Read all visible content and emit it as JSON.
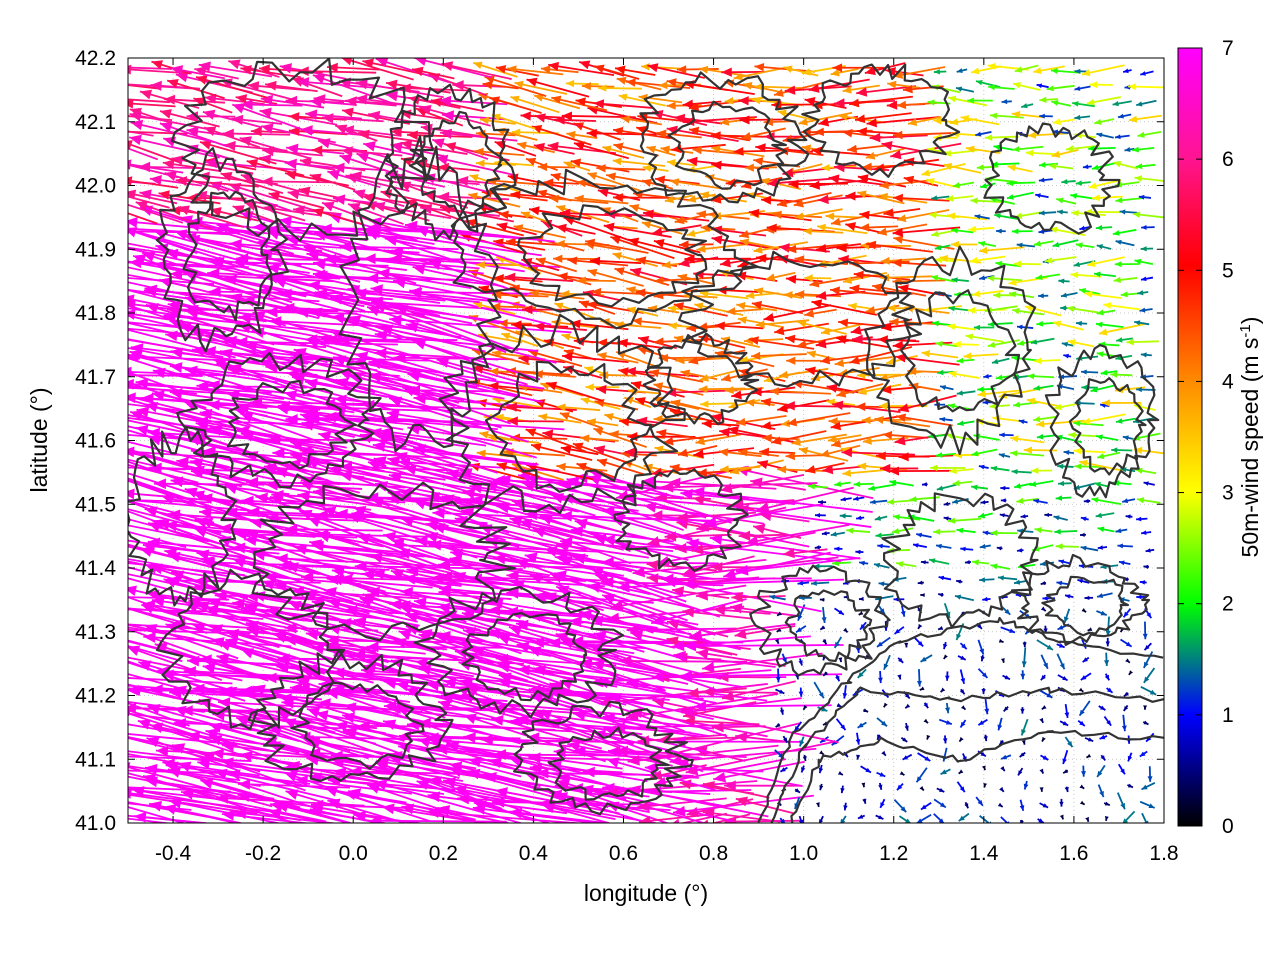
{
  "chart_data": {
    "type": "vector-field",
    "title": "",
    "xlabel": "longitude (°)",
    "ylabel": "latitude (°)",
    "xlim": [
      -0.5,
      1.8
    ],
    "ylim": [
      41.0,
      42.2
    ],
    "xticks": [
      -0.4,
      -0.2,
      0.0,
      0.2,
      0.4,
      0.6,
      0.8,
      1.0,
      1.2,
      1.4,
      1.6,
      1.8
    ],
    "xtick_labels": [
      "-0.4",
      "-0.2",
      "0.0",
      "0.2",
      "0.4",
      "0.6",
      "0.8",
      "1.0",
      "1.2",
      "1.4",
      "1.6",
      "1.8"
    ],
    "yticks": [
      41.0,
      41.1,
      41.2,
      41.3,
      41.4,
      41.5,
      41.6,
      41.7,
      41.8,
      41.9,
      42.0,
      42.1,
      42.2
    ],
    "ytick_labels": [
      "41.0",
      "41.1",
      "41.2",
      "41.3",
      "41.4",
      "41.5",
      "41.6",
      "41.7",
      "41.8",
      "41.9",
      "42.0",
      "42.1",
      "42.2"
    ],
    "grid": true,
    "colorbar": {
      "label": "50m-wind speed (m s",
      "label_superscript": "-1",
      "label_suffix": ")",
      "range": [
        0,
        7
      ],
      "ticks": [
        0,
        1,
        2,
        3,
        4,
        5,
        6,
        7
      ],
      "tick_labels": [
        "0",
        "1",
        "2",
        "3",
        "4",
        "5",
        "6",
        "7"
      ],
      "colors": [
        "#000000",
        "#0000ff",
        "#00ff00",
        "#ffff00",
        "#ff8c00",
        "#ff0000",
        "#ff00ff"
      ]
    },
    "description_of_field": "Westward-pointing wind vectors; speeds ~7+ m/s over western/southwestern region, 4-6 m/s in the north-central band, 0-2 m/s in the southeast over the sea.",
    "contour_color": "#333333",
    "speed_regions": [
      {
        "lon_min": -0.5,
        "lon_max": 0.7,
        "lat_min": 41.0,
        "lat_max": 41.95,
        "speed_range": [
          6.8,
          7.0
        ]
      },
      {
        "lon_min": 0.7,
        "lon_max": 1.0,
        "lat_min": 41.0,
        "lat_max": 41.55,
        "speed_range": [
          6.0,
          7.0
        ]
      },
      {
        "lon_min": -0.5,
        "lon_max": 0.3,
        "lat_min": 41.95,
        "lat_max": 42.2,
        "speed_range": [
          5.5,
          6.5
        ]
      },
      {
        "lon_min": 0.3,
        "lon_max": 1.3,
        "lat_min": 41.55,
        "lat_max": 42.2,
        "speed_range": [
          3.5,
          5.5
        ]
      },
      {
        "lon_min": 1.3,
        "lon_max": 1.8,
        "lat_min": 41.55,
        "lat_max": 42.2,
        "speed_range": [
          1.0,
          3.5
        ]
      },
      {
        "lon_min": 0.95,
        "lon_max": 1.8,
        "lat_min": 41.0,
        "lat_max": 41.4,
        "speed_range": [
          0.2,
          1.5
        ]
      },
      {
        "lon_min": 1.0,
        "lon_max": 1.8,
        "lat_min": 41.4,
        "lat_max": 41.55,
        "speed_range": [
          0.5,
          2.5
        ]
      }
    ]
  }
}
